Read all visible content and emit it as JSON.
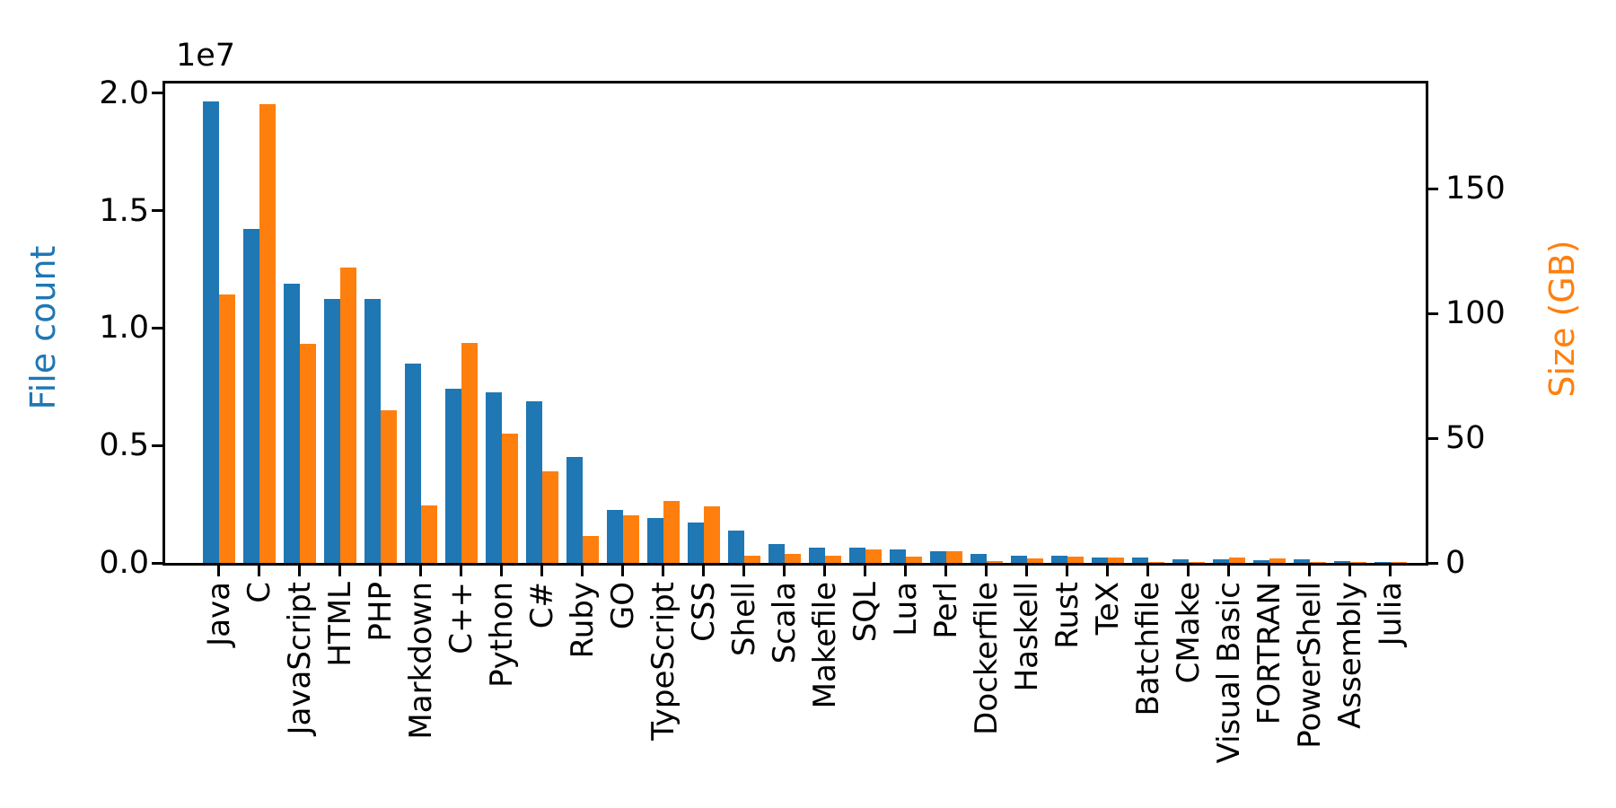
{
  "figure": {
    "background": "#ffffff"
  },
  "chart_data": {
    "type": "bar",
    "title": "",
    "grid": false,
    "legend": "none",
    "categories": [
      "Java",
      "C",
      "JavaScript",
      "HTML",
      "PHP",
      "Markdown",
      "C++",
      "Python",
      "C#",
      "Ruby",
      "GO",
      "TypeScript",
      "CSS",
      "Shell",
      "Scala",
      "Makefile",
      "SQL",
      "Lua",
      "Perl",
      "Dockerfile",
      "Haskell",
      "Rust",
      "TeX",
      "Batchfile",
      "CMake",
      "Visual Basic",
      "FORTRAN",
      "PowerShell",
      "Assembly",
      "Julia"
    ],
    "series": [
      {
        "name": "File count",
        "axis": "left",
        "color": "#1f77b4",
        "values": [
          19650000,
          14230000,
          11880000,
          11230000,
          11230000,
          8500000,
          7420000,
          7270000,
          6880000,
          4500000,
          2270000,
          1920000,
          1730000,
          1380000,
          810000,
          650000,
          650000,
          580000,
          500000,
          380000,
          310000,
          310000,
          230000,
          230000,
          150000,
          150000,
          120000,
          150000,
          60000,
          50000
        ]
      },
      {
        "name": "Size (GB)",
        "axis": "right",
        "color": "#ff7f0e",
        "values": [
          107.5,
          183.8,
          87.8,
          118.3,
          61.1,
          23.0,
          88.1,
          51.8,
          36.7,
          10.8,
          19.1,
          24.8,
          22.7,
          2.9,
          3.6,
          2.9,
          5.4,
          2.5,
          4.7,
          0.7,
          1.8,
          2.5,
          2.2,
          0.4,
          0.3,
          2.2,
          1.8,
          0.4,
          0.5,
          0.2
        ]
      }
    ],
    "left_axis": {
      "label": "File count",
      "color": "#1f77b4",
      "offset_text": "1e7",
      "tick_labels": [
        "0.0",
        "0.5",
        "1.0",
        "1.5",
        "2.0"
      ],
      "tick_values": [
        0,
        5000000,
        10000000,
        15000000,
        20000000
      ],
      "max": 20450000
    },
    "right_axis": {
      "label": "Size (GB)",
      "color": "#ff7f0e",
      "tick_labels": [
        "0",
        "50",
        "100",
        "150"
      ],
      "tick_values": [
        0,
        50,
        100,
        150
      ],
      "max": 192.5
    },
    "x_axis": {
      "tick_label_rotation": 90
    }
  }
}
